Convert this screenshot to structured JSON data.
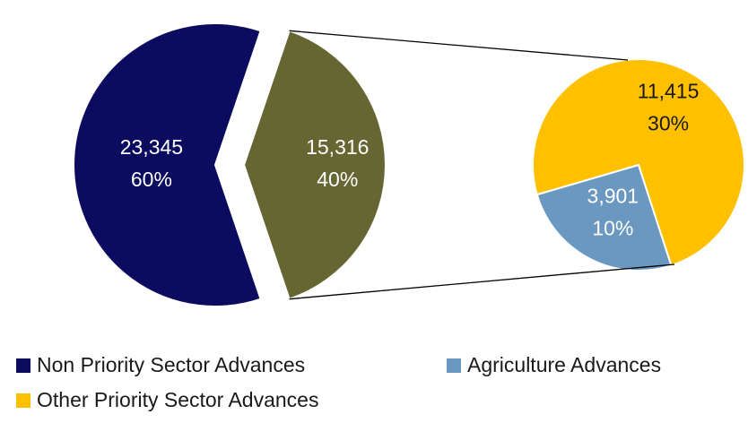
{
  "chart_data": {
    "type": "pie_of_pie",
    "main": {
      "categories": [
        "Non Priority Sector Advances",
        null
      ],
      "values": [
        23345,
        15316
      ],
      "value_labels": [
        "23,345",
        "15,316"
      ],
      "percent_labels": [
        "60%",
        "40%"
      ],
      "colors": [
        "#0b0b5f",
        "#666633"
      ],
      "label_colors": [
        "#ffffff",
        "#ffffff"
      ]
    },
    "secondary": {
      "categories": [
        "Agriculture Advances",
        "Other Priority Sector Advances"
      ],
      "values": [
        3901,
        11415
      ],
      "value_labels": [
        "3,901",
        "11,415"
      ],
      "percent_labels": [
        "10%",
        "30%"
      ],
      "colors": [
        "#6b98c1",
        "#ffc000"
      ],
      "label_colors": [
        "#ffffff",
        "#1a1a1a"
      ]
    }
  }
}
